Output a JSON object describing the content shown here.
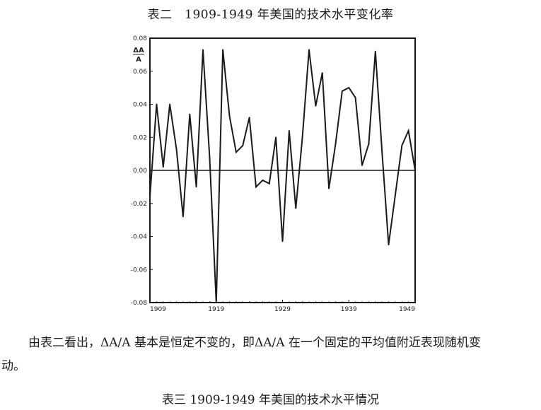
{
  "caption": "表二　1909-1949 年美国的技术水平变化率",
  "body_text": "由表二看出，ΔA/A 基本是恒定不变的，即ΔA/A 在一个固定的平均值附近表现随机变",
  "body_text_cont": "动。",
  "next_caption": "表三 1909-1949 年美国的技术水平情况",
  "chart_data": {
    "type": "line",
    "title": "",
    "xlabel": "",
    "ylabel": "ΔA/A",
    "xlim": [
      1909,
      1949
    ],
    "ylim": [
      -0.08,
      0.08
    ],
    "x_ticks": [
      "1909",
      "1919",
      "1929",
      "1939",
      "1949"
    ],
    "y_ticks": [
      "0.08",
      "0.06",
      "0.04",
      "0.02",
      "0.00",
      "-0.02",
      "-0.04",
      "-0.06",
      "-0.08"
    ],
    "y_tick_values": [
      0.08,
      0.06,
      0.04,
      0.02,
      0.0,
      -0.02,
      -0.04,
      -0.06,
      -0.08
    ],
    "grid": false,
    "series": [
      {
        "x": [
          1909,
          1910,
          1911,
          1912,
          1913,
          1914,
          1915,
          1916,
          1917,
          1918,
          1919,
          1920,
          1921,
          1922,
          1923,
          1924,
          1925,
          1926,
          1927,
          1928,
          1929,
          1930,
          1931,
          1932,
          1933,
          1934,
          1935,
          1936,
          1937,
          1938,
          1939,
          1940,
          1941,
          1942,
          1943,
          1944,
          1945,
          1946,
          1947,
          1948,
          1949
        ],
        "values": [
          -0.016,
          0.04,
          0.002,
          0.04,
          0.013,
          -0.028,
          0.034,
          -0.01,
          0.073,
          0.008,
          -0.08,
          0.073,
          0.033,
          0.011,
          0.015,
          0.032,
          -0.01,
          -0.006,
          -0.008,
          0.02,
          -0.043,
          0.024,
          -0.023,
          0.02,
          0.073,
          0.039,
          0.059,
          -0.011,
          0.016,
          0.048,
          0.05,
          0.044,
          0.003,
          0.016,
          0.072,
          0.012,
          -0.045,
          -0.015,
          0.015,
          0.024,
          0.0
        ],
        "color": "#1a1a1a"
      }
    ]
  }
}
